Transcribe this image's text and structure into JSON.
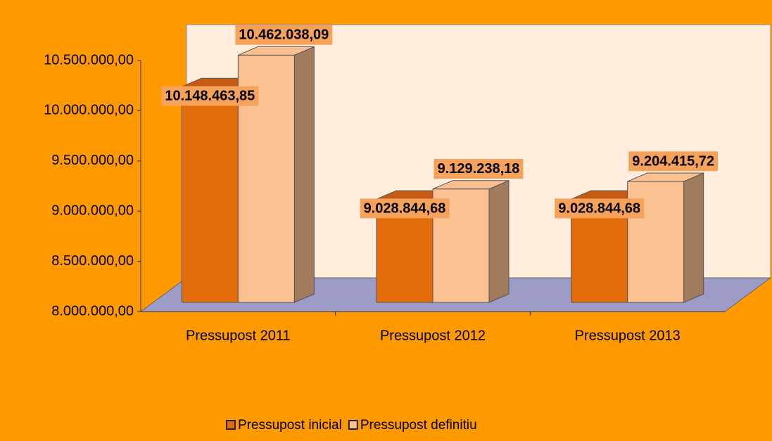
{
  "chart_data": {
    "type": "bar3d",
    "categories": [
      "Pressupost 2011",
      "Pressupost 2012",
      "Pressupost 2013"
    ],
    "series": [
      {
        "name": "Pressupost inicial",
        "color": "#e36c0a",
        "values": [
          10148463.85,
          9028844.68,
          9028844.68
        ],
        "value_labels": [
          "10.148.463,85",
          "9.028.844,68",
          "9.028.844,68"
        ]
      },
      {
        "name": "Pressupost definitiu",
        "color": "#fac090",
        "values": [
          10462038.09,
          9129238.18,
          9204415.72
        ],
        "value_labels": [
          "10.462.038,09",
          "9.129.238,18",
          "9.204.415,72"
        ]
      }
    ],
    "ylim": [
      8000000,
      10500000
    ],
    "yticks": [
      {
        "value": 8000000,
        "label": "8.000.000,00"
      },
      {
        "value": 8500000,
        "label": "8.500.000,00"
      },
      {
        "value": 9000000,
        "label": "9.000.000,00"
      },
      {
        "value": 9500000,
        "label": "9.500.000,00"
      },
      {
        "value": 10000000,
        "label": "10.000.000,00"
      },
      {
        "value": 10500000,
        "label": "10.500.000,00"
      }
    ],
    "legend": "bottom"
  }
}
